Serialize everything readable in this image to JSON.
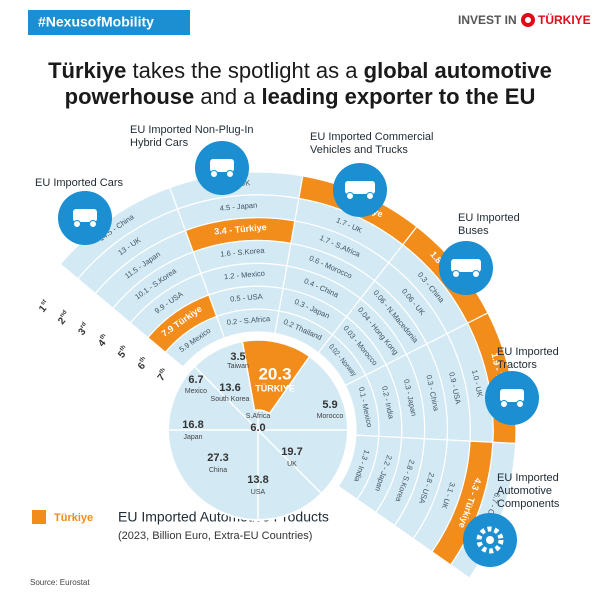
{
  "header": {
    "tag": "#NexusofMobility",
    "logo_prefix": "INVEST IN",
    "logo_country": "TÜRKIYE"
  },
  "title": {
    "lines": [
      [
        {
          "text": "Türkiye",
          "bold": true
        },
        {
          "text": " takes the spotlight as a ",
          "bold": false
        },
        {
          "text": "global automotive",
          "bold": true
        }
      ],
      [
        {
          "text": "powerhouse",
          "bold": true
        },
        {
          "text": " and a ",
          "bold": false
        },
        {
          "text": "leading exporter to the EU",
          "bold": true
        }
      ]
    ]
  },
  "rank_labels": [
    {
      "number": "1",
      "suffix": "st"
    },
    {
      "number": "2",
      "suffix": "nd"
    },
    {
      "number": "3",
      "suffix": "rd"
    },
    {
      "number": "4",
      "suffix": "th"
    },
    {
      "number": "5",
      "suffix": "th"
    },
    {
      "number": "6",
      "suffix": "th"
    },
    {
      "number": "7",
      "suffix": "th"
    }
  ],
  "categories": [
    {
      "label": [
        "EU Imported Cars"
      ],
      "highlight": 5,
      "entries": [
        "14.5 - China",
        "13 - UK",
        "11.5 - Japan",
        "10.1 - S.Korea",
        "9.9 - USA",
        "7.9 Türkiye",
        "5.9 Mexico"
      ]
    },
    {
      "label": [
        "EU Imported Non-Plug-In",
        "Hybrid Cars"
      ],
      "highlight": 2,
      "entries": [
        "4.7 - UK",
        "4.5 - Japan",
        "3.4 - Türkiye",
        "1.6 - S.Korea",
        "1.2 - Mexico",
        "0.5 - USA",
        "0.2 - S.Africa"
      ]
    },
    {
      "label": [
        "EU Imported Commercial",
        "Vehicles and Trucks"
      ],
      "highlight": 0,
      "entries": [
        "3.6 - Türkiye",
        "1.7 - UK",
        "1.7 - S.Africa",
        "0.6 - Morocco",
        "0.4 - China",
        "0.3 - Japan",
        "0.2 Thailand"
      ]
    },
    {
      "label": [
        "EU Imported",
        "Buses"
      ],
      "highlight": 0,
      "entries": [
        "1.8 - Türkiye",
        "0.3 - China",
        "0.06 - UK",
        "0.06 - N.Macedonia",
        "0.04 - Hong Kong",
        "0.03 - Morocco",
        "0.02 - Norway"
      ]
    },
    {
      "label": [
        "EU Imported",
        "Tractors"
      ],
      "highlight": 0,
      "entries": [
        "1.9 - Türkiye",
        "1.0 - UK",
        "0.9 - USA",
        "0.3 - China",
        "0.3 - Japan",
        "0.2 - India",
        "0.1 - Mexico"
      ]
    },
    {
      "label": [
        "EU Imported",
        "Automotive",
        "Components"
      ],
      "highlight": 1,
      "entries": [
        "6.7 - China",
        "4.3 - Türkiye",
        "3.1 - UK",
        "2.8 - USA",
        "2.8 - S.Korea",
        "2.2 - Japan",
        "1.3 - India"
      ]
    }
  ],
  "center": {
    "highlight": 0,
    "items": [
      {
        "value": "20.3",
        "label": "TÜRKIYE"
      },
      {
        "value": "3.5",
        "label": "Taiwan"
      },
      {
        "value": "5.9",
        "label": "Morocco"
      },
      {
        "value": "6.7",
        "label": "Mexico"
      },
      {
        "value": "13.6",
        "label": "South Korea"
      },
      {
        "value": "16.8",
        "label": "Japan"
      },
      {
        "value": "6.0",
        "label": "S.Africa"
      },
      {
        "value": "19.7",
        "label": "UK"
      },
      {
        "value": "27.3",
        "label": "China"
      },
      {
        "value": "13.8",
        "label": "USA"
      }
    ]
  },
  "legend": {
    "label": "Türkiye",
    "color": "#f28c1b"
  },
  "chart_title": "EU Imported Automotive Products",
  "chart_subtitle": "(2023, Billion Euro, Extra-EU Countries)",
  "source": "Source: Eurostat"
}
